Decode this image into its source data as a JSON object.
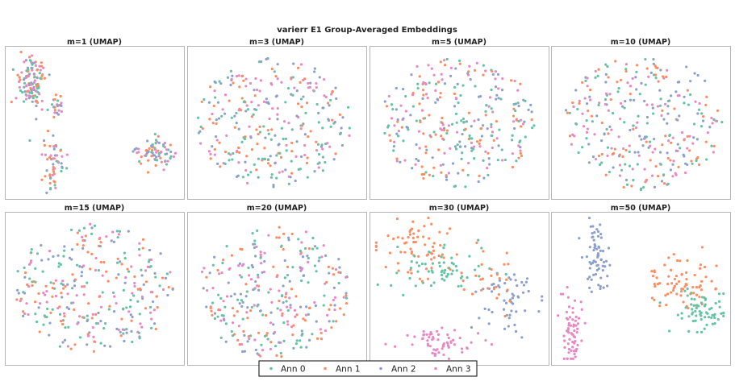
{
  "chart_data": {
    "type": "scatter",
    "title": "varierr E1 Group-Averaged Embeddings",
    "legend": {
      "placement": "bottom-center",
      "entries": [
        {
          "label": "Ann 0",
          "color": "#66c2a5"
        },
        {
          "label": "Ann 1",
          "color": "#fc8d62"
        },
        {
          "label": "Ann 2",
          "color": "#8da0cb"
        },
        {
          "label": "Ann 3",
          "color": "#e78ac3"
        }
      ]
    },
    "axes_visible": false,
    "grid": false,
    "panels": [
      {
        "title": "m=1 (UMAP)",
        "clusters": [
          {
            "series": [
              0,
              1,
              2,
              3
            ],
            "cx": 0.14,
            "cy": 0.78,
            "sx": 0.04,
            "sy": 0.1,
            "n": 120
          },
          {
            "series": [
              0,
              1,
              2,
              3
            ],
            "cx": 0.28,
            "cy": 0.62,
            "sx": 0.02,
            "sy": 0.04,
            "n": 22
          },
          {
            "series": [
              0,
              1,
              2,
              3
            ],
            "cx": 0.27,
            "cy": 0.19,
            "sx": 0.03,
            "sy": 0.09,
            "n": 55
          },
          {
            "series": [
              0,
              1,
              2,
              3
            ],
            "cx": 0.85,
            "cy": 0.3,
            "sx": 0.05,
            "sy": 0.05,
            "n": 75
          }
        ]
      },
      {
        "title": "m=3 (UMAP)",
        "blob": {
          "cx": 0.48,
          "cy": 0.5,
          "rx": 0.45,
          "ry": 0.44,
          "n": 300
        }
      },
      {
        "title": "m=5 (UMAP)",
        "blob": {
          "cx": 0.49,
          "cy": 0.5,
          "rx": 0.45,
          "ry": 0.45,
          "n": 300
        }
      },
      {
        "title": "m=10 (UMAP)",
        "blob": {
          "cx": 0.52,
          "cy": 0.5,
          "rx": 0.46,
          "ry": 0.46,
          "n": 300
        }
      },
      {
        "title": "m=15 (UMAP)",
        "blob": {
          "cx": 0.5,
          "cy": 0.5,
          "rx": 0.46,
          "ry": 0.44,
          "n": 300
        }
      },
      {
        "title": "m=20 (UMAP)",
        "blob": {
          "cx": 0.48,
          "cy": 0.48,
          "rx": 0.45,
          "ry": 0.45,
          "n": 300
        }
      },
      {
        "title": "m=30 (UMAP)",
        "clusters": [
          {
            "series": [
              1
            ],
            "cx": 0.28,
            "cy": 0.78,
            "sx": 0.12,
            "sy": 0.1,
            "n": 70
          },
          {
            "series": [
              0
            ],
            "cx": 0.4,
            "cy": 0.63,
            "sx": 0.14,
            "sy": 0.08,
            "n": 60
          },
          {
            "series": [
              2
            ],
            "cx": 0.77,
            "cy": 0.42,
            "sx": 0.09,
            "sy": 0.11,
            "n": 55
          },
          {
            "series": [
              1
            ],
            "cx": 0.72,
            "cy": 0.55,
            "sx": 0.09,
            "sy": 0.08,
            "n": 25
          },
          {
            "series": [
              3
            ],
            "cx": 0.4,
            "cy": 0.12,
            "sx": 0.11,
            "sy": 0.05,
            "n": 60
          }
        ]
      },
      {
        "title": "m=50 (UMAP)",
        "clusters": [
          {
            "series": [
              2
            ],
            "cx": 0.25,
            "cy": 0.72,
            "sx": 0.04,
            "sy": 0.12,
            "n": 65
          },
          {
            "series": [
              3
            ],
            "cx": 0.1,
            "cy": 0.22,
            "sx": 0.03,
            "sy": 0.13,
            "n": 65
          },
          {
            "series": [
              1
            ],
            "cx": 0.72,
            "cy": 0.55,
            "sx": 0.09,
            "sy": 0.09,
            "n": 70
          },
          {
            "series": [
              0
            ],
            "cx": 0.83,
            "cy": 0.35,
            "sx": 0.08,
            "sy": 0.08,
            "n": 65
          }
        ]
      }
    ]
  }
}
